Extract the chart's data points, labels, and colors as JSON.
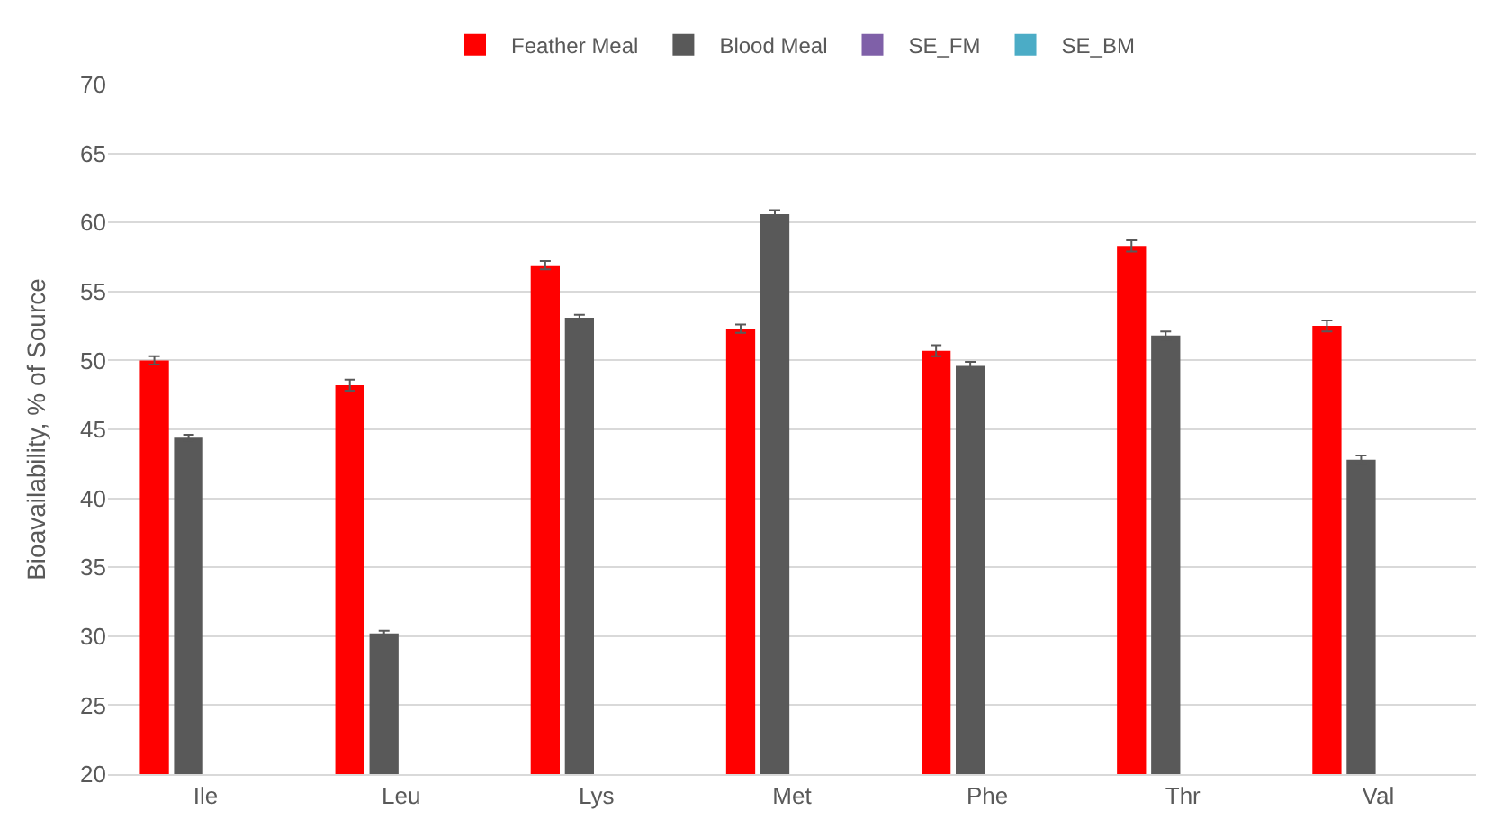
{
  "chart_data": {
    "type": "bar",
    "ylabel": "Bioavailability, % of Source",
    "categories": [
      "Ile",
      "Leu",
      "Lys",
      "Met",
      "Phe",
      "Thr",
      "Val"
    ],
    "series": [
      {
        "name": "Feather Meal",
        "color": "#ff0000",
        "values": [
          50.0,
          48.2,
          56.9,
          52.3,
          50.7,
          58.3,
          52.5
        ],
        "errors": [
          0.3,
          0.4,
          0.3,
          0.3,
          0.4,
          0.4,
          0.4
        ]
      },
      {
        "name": "Blood Meal",
        "color": "#595959",
        "values": [
          44.4,
          30.2,
          53.1,
          60.6,
          49.6,
          51.8,
          42.8
        ],
        "errors": [
          0.2,
          0.2,
          0.2,
          0.3,
          0.3,
          0.3,
          0.3
        ]
      },
      {
        "name": "SE_FM",
        "color": "#7f60a8",
        "values": [
          null,
          null,
          null,
          null,
          null,
          null,
          null
        ]
      },
      {
        "name": "SE_BM",
        "color": "#4bacc6",
        "values": [
          null,
          null,
          null,
          null,
          null,
          null,
          null
        ]
      }
    ],
    "ylim": [
      20,
      70
    ],
    "yticks": [
      20,
      25,
      30,
      35,
      40,
      45,
      50,
      55,
      60,
      65,
      70
    ],
    "grid": "y",
    "legend": "top"
  }
}
